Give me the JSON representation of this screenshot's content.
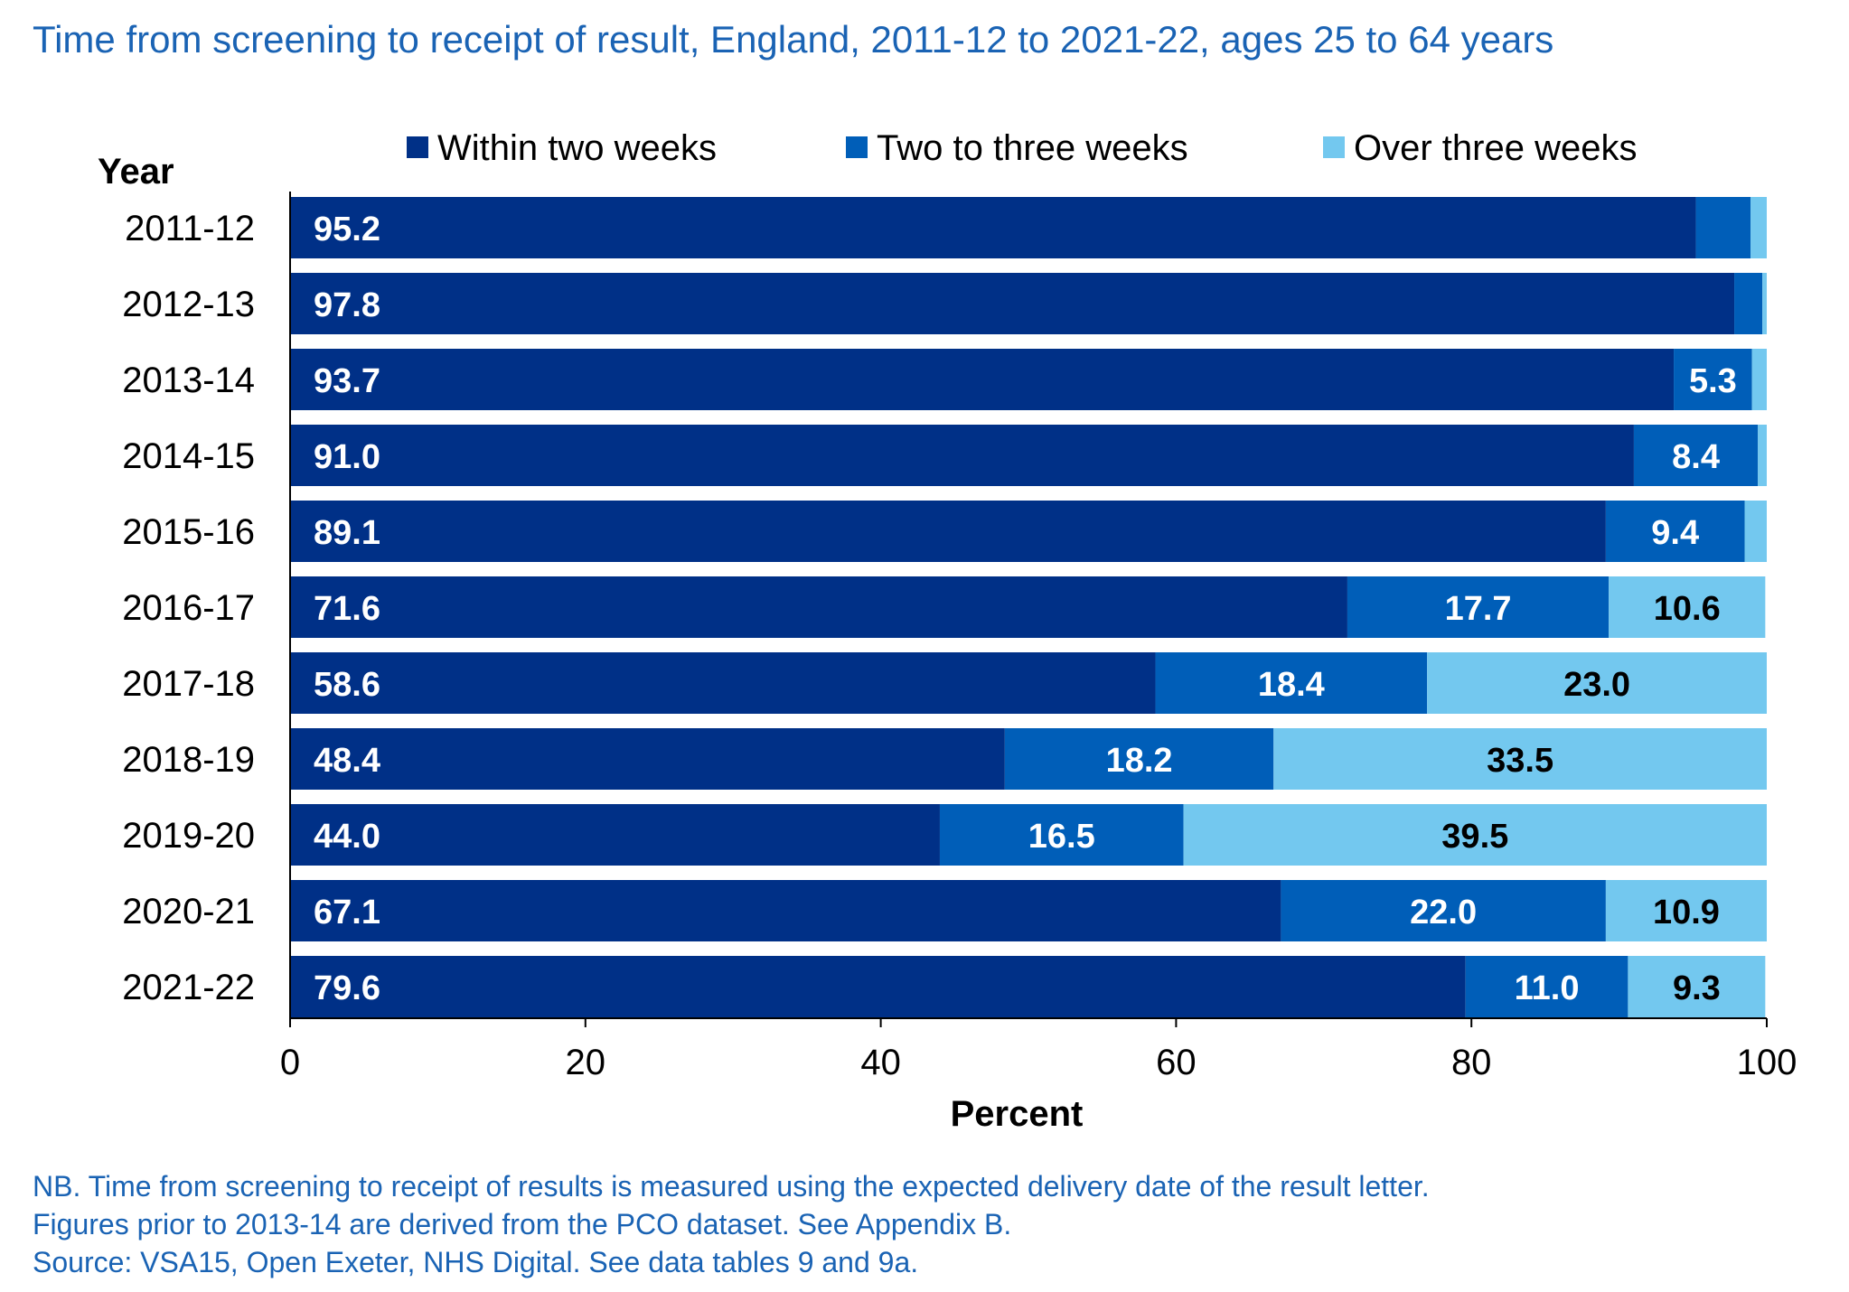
{
  "title": "Time from screening to receipt of result, England, 2011-12 to 2021-22, ages 25 to 64 years",
  "notes": [
    "NB. Time from screening to receipt of results is measured using the expected delivery date of the result letter.",
    "Figures prior to 2013-14 are derived from the PCO dataset. See Appendix B.",
    "Source: VSA15, Open Exeter, NHS Digital. See data tables 9 and 9a."
  ],
  "chart_data": {
    "type": "bar",
    "orientation": "horizontal",
    "stacked": true,
    "title": "Time from screening to receipt of result, England, 2011-12 to 2021-22, ages 25 to 64 years",
    "category_axis_title": "Year",
    "xlabel": "Percent",
    "xlim": [
      0,
      100
    ],
    "xticks": [
      0,
      20,
      40,
      60,
      80,
      100
    ],
    "legend_position": "top",
    "grid": false,
    "categories": [
      "2011-12",
      "2012-13",
      "2013-14",
      "2014-15",
      "2015-16",
      "2016-17",
      "2017-18",
      "2018-19",
      "2019-20",
      "2020-21",
      "2021-22"
    ],
    "series": [
      {
        "name": "Within two weeks",
        "color": "#003087",
        "label_color": "#ffffff",
        "values": [
          95.2,
          97.8,
          93.7,
          91.0,
          89.1,
          71.6,
          58.6,
          48.4,
          44.0,
          67.1,
          79.6
        ],
        "labels": [
          "95.2",
          "97.8",
          "93.7",
          "91.0",
          "89.1",
          "71.6",
          "58.6",
          "48.4",
          "44.0",
          "67.1",
          "79.6"
        ]
      },
      {
        "name": "Two to three weeks",
        "color": "#005eb8",
        "label_color": "#ffffff",
        "values": [
          3.7,
          1.9,
          5.3,
          8.4,
          9.4,
          17.7,
          18.4,
          18.2,
          16.5,
          22.0,
          11.0
        ],
        "labels": [
          "",
          "",
          "5.3",
          "8.4",
          "9.4",
          "17.7",
          "18.4",
          "18.2",
          "16.5",
          "22.0",
          "11.0"
        ]
      },
      {
        "name": "Over three weeks",
        "color": "#73c8ef",
        "label_color": "#000000",
        "values": [
          1.1,
          0.3,
          1.0,
          0.6,
          1.5,
          10.6,
          23.0,
          33.5,
          39.5,
          10.9,
          9.3
        ],
        "labels": [
          "",
          "",
          "",
          "",
          "",
          "10.6",
          "23.0",
          "33.5",
          "39.5",
          "10.9",
          "9.3"
        ]
      }
    ]
  }
}
